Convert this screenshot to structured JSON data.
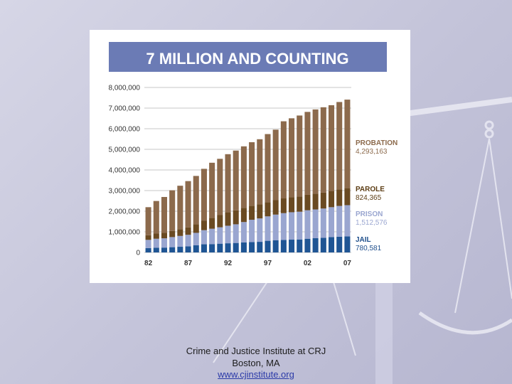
{
  "footer": {
    "org": "Crime and Justice Institute at CRJ",
    "city": "Boston, MA",
    "url": "www.cjinstitute.org"
  },
  "colors": {
    "title_bar": "#6b7bb5",
    "probation": "#8c6a4c",
    "parole": "#6a4a22",
    "prison": "#9aa6d0",
    "jail": "#1f5594",
    "probation_label": "#8c6a4c",
    "parole_label": "#5c3d14",
    "prison_label": "#9aa6d0",
    "jail_label": "#1f4f8c"
  },
  "chart_data": {
    "type": "bar",
    "stacked": true,
    "title": "7 MILLION AND COUNTING",
    "x": [
      1982,
      1983,
      1984,
      1985,
      1986,
      1987,
      1988,
      1989,
      1990,
      1991,
      1992,
      1993,
      1994,
      1995,
      1996,
      1997,
      1998,
      1999,
      2000,
      2001,
      2002,
      2003,
      2004,
      2005,
      2006,
      2007
    ],
    "x_tick_labels": [
      "82",
      "87",
      "92",
      "97",
      "02",
      "07"
    ],
    "x_tick_years": [
      1982,
      1987,
      1992,
      1997,
      2002,
      2007
    ],
    "y_ticks": [
      0,
      1000000,
      2000000,
      3000000,
      4000000,
      5000000,
      6000000,
      7000000,
      8000000
    ],
    "y_tick_labels": [
      "0",
      "1,000,000",
      "2,000,000",
      "3,000,000",
      "4,000,000",
      "5,000,000",
      "6,000,000",
      "7,000,000",
      "8,000,000"
    ],
    "ylim": [
      0,
      8000000
    ],
    "grid": true,
    "series": [
      {
        "name": "JAIL",
        "legend_value": "780,581",
        "values": [
          210000,
          225000,
          235000,
          255000,
          275000,
          295000,
          345000,
          395000,
          405000,
          425000,
          445000,
          460000,
          485000,
          505000,
          515000,
          565000,
          595000,
          605000,
          620000,
          630000,
          665000,
          690000,
          710000,
          745000,
          765000,
          780581
        ]
      },
      {
        "name": "PRISON",
        "legend_value": "1,512,576",
        "values": [
          400000,
          440000,
          450000,
          490000,
          525000,
          560000,
          605000,
          685000,
          745000,
          795000,
          850000,
          905000,
          990000,
          1080000,
          1135000,
          1185000,
          1240000,
          1300000,
          1330000,
          1345000,
          1380000,
          1395000,
          1420000,
          1450000,
          1490000,
          1512576
        ]
      },
      {
        "name": "PAROLE",
        "legend_value": "824,365",
        "values": [
          225000,
          250000,
          265000,
          300000,
          325000,
          355000,
          410000,
          455000,
          530000,
          590000,
          660000,
          675000,
          690000,
          680000,
          680000,
          690000,
          700000,
          715000,
          725000,
          735000,
          750000,
          770000,
          770000,
          785000,
          800000,
          824365
        ]
      },
      {
        "name": "PROBATION",
        "legend_value": "4,293,163",
        "values": [
          1360000,
          1580000,
          1740000,
          1970000,
          2110000,
          2250000,
          2350000,
          2520000,
          2670000,
          2730000,
          2810000,
          2900000,
          2980000,
          3080000,
          3160000,
          3300000,
          3420000,
          3740000,
          3830000,
          3930000,
          4020000,
          4080000,
          4140000,
          4160000,
          4240000,
          4293163
        ]
      }
    ]
  }
}
